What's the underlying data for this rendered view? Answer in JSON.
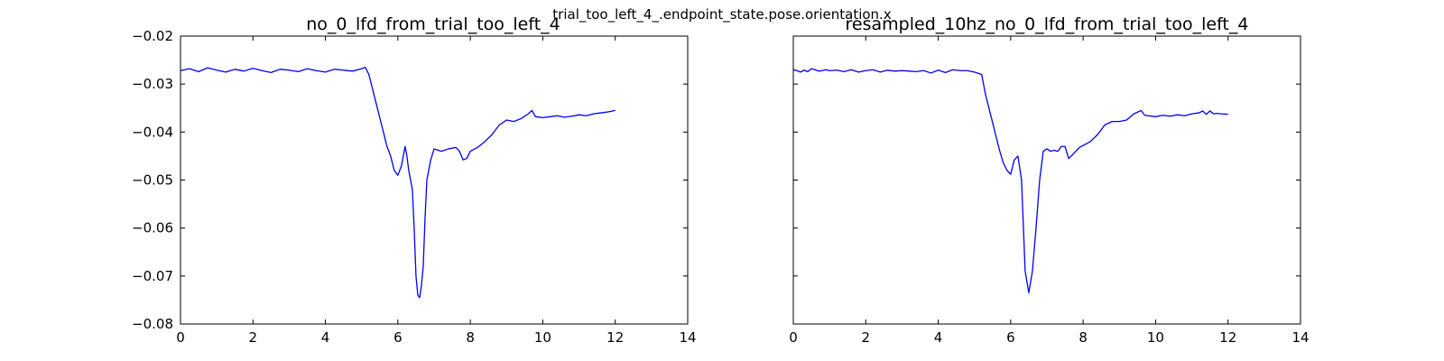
{
  "figure": {
    "suptitle": "trial_too_left_4_.endpoint_state.pose.orientation.x"
  },
  "chart_data": [
    {
      "type": "line",
      "title": "no_0_lfd_from_trial_too_left_4",
      "xlabel": "",
      "ylabel": "",
      "xlim": [
        0,
        14
      ],
      "ylim": [
        -0.08,
        -0.02
      ],
      "xticks": [
        0,
        2,
        4,
        6,
        8,
        10,
        12,
        14
      ],
      "yticks": [
        -0.08,
        -0.07,
        -0.06,
        -0.05,
        -0.04,
        -0.03,
        -0.02
      ],
      "xtick_labels": [
        "0",
        "2",
        "4",
        "6",
        "8",
        "10",
        "12",
        "14"
      ],
      "ytick_labels": [
        "−0.08",
        "−0.07",
        "−0.06",
        "−0.05",
        "−0.04",
        "−0.03",
        "−0.02"
      ],
      "show_yticklabels": true,
      "grid": false,
      "series": [
        {
          "color": "#0000ff",
          "x": [
            0,
            0.25,
            0.5,
            0.75,
            1.0,
            1.25,
            1.5,
            1.75,
            2.0,
            2.25,
            2.5,
            2.75,
            3.0,
            3.25,
            3.5,
            3.75,
            4.0,
            4.25,
            4.5,
            4.75,
            5.0,
            5.1,
            5.2,
            5.3,
            5.4,
            5.5,
            5.6,
            5.7,
            5.8,
            5.9,
            6.0,
            6.1,
            6.15,
            6.2,
            6.25,
            6.3,
            6.4,
            6.45,
            6.5,
            6.55,
            6.6,
            6.65,
            6.7,
            6.75,
            6.8,
            6.9,
            7.0,
            7.2,
            7.4,
            7.6,
            7.7,
            7.8,
            7.9,
            8.0,
            8.2,
            8.4,
            8.6,
            8.8,
            9.0,
            9.2,
            9.4,
            9.6,
            9.7,
            9.8,
            10.0,
            10.2,
            10.4,
            10.6,
            10.8,
            11.0,
            11.2,
            11.4,
            11.6,
            11.8,
            12.0
          ],
          "y": [
            -0.0272,
            -0.0268,
            -0.0274,
            -0.0266,
            -0.0271,
            -0.0275,
            -0.0269,
            -0.0273,
            -0.0267,
            -0.0272,
            -0.0276,
            -0.0269,
            -0.0271,
            -0.0274,
            -0.0268,
            -0.0272,
            -0.0275,
            -0.0269,
            -0.0271,
            -0.0273,
            -0.0268,
            -0.0265,
            -0.028,
            -0.031,
            -0.034,
            -0.037,
            -0.04,
            -0.043,
            -0.045,
            -0.048,
            -0.049,
            -0.047,
            -0.045,
            -0.043,
            -0.045,
            -0.048,
            -0.052,
            -0.06,
            -0.07,
            -0.074,
            -0.0745,
            -0.072,
            -0.068,
            -0.058,
            -0.05,
            -0.046,
            -0.0435,
            -0.044,
            -0.0435,
            -0.0432,
            -0.044,
            -0.0458,
            -0.0455,
            -0.044,
            -0.0432,
            -0.042,
            -0.0405,
            -0.0385,
            -0.0375,
            -0.0378,
            -0.0372,
            -0.0362,
            -0.0355,
            -0.0368,
            -0.037,
            -0.0368,
            -0.0366,
            -0.0369,
            -0.0367,
            -0.0364,
            -0.0366,
            -0.0362,
            -0.036,
            -0.0358,
            -0.0355
          ]
        }
      ]
    },
    {
      "type": "line",
      "title": "resampled_10hz_no_0_lfd_from_trial_too_left_4",
      "xlabel": "",
      "ylabel": "",
      "xlim": [
        0,
        14
      ],
      "ylim": [
        -0.08,
        -0.02
      ],
      "xticks": [
        0,
        2,
        4,
        6,
        8,
        10,
        12,
        14
      ],
      "yticks": [
        -0.08,
        -0.07,
        -0.06,
        -0.05,
        -0.04,
        -0.03,
        -0.02
      ],
      "xtick_labels": [
        "0",
        "2",
        "4",
        "6",
        "8",
        "10",
        "12",
        "14"
      ],
      "ytick_labels": [],
      "show_yticklabels": false,
      "grid": false,
      "series": [
        {
          "color": "#0000ff",
          "x": [
            0,
            0.1,
            0.2,
            0.3,
            0.4,
            0.5,
            0.6,
            0.7,
            0.8,
            0.9,
            1.0,
            1.2,
            1.4,
            1.6,
            1.8,
            2.0,
            2.2,
            2.4,
            2.6,
            2.8,
            3.0,
            3.2,
            3.4,
            3.6,
            3.8,
            4.0,
            4.2,
            4.4,
            4.6,
            4.8,
            5.0,
            5.2,
            5.3,
            5.4,
            5.5,
            5.6,
            5.7,
            5.8,
            5.9,
            6.0,
            6.1,
            6.2,
            6.3,
            6.4,
            6.5,
            6.6,
            6.7,
            6.8,
            6.9,
            7.0,
            7.1,
            7.2,
            7.3,
            7.4,
            7.5,
            7.6,
            7.7,
            7.8,
            7.9,
            8.0,
            8.2,
            8.4,
            8.6,
            8.8,
            9.0,
            9.2,
            9.4,
            9.6,
            9.7,
            9.8,
            10.0,
            10.2,
            10.4,
            10.6,
            10.8,
            11.0,
            11.2,
            11.3,
            11.4,
            11.5,
            11.6,
            11.7,
            11.8,
            12.0
          ],
          "y": [
            -0.027,
            -0.0272,
            -0.0275,
            -0.0271,
            -0.0274,
            -0.0268,
            -0.027,
            -0.0273,
            -0.0272,
            -0.027,
            -0.0272,
            -0.0271,
            -0.0274,
            -0.027,
            -0.0275,
            -0.0272,
            -0.027,
            -0.0275,
            -0.0271,
            -0.0273,
            -0.0272,
            -0.0273,
            -0.0274,
            -0.0272,
            -0.0277,
            -0.0271,
            -0.0276,
            -0.027,
            -0.0272,
            -0.0272,
            -0.0275,
            -0.028,
            -0.032,
            -0.035,
            -0.038,
            -0.041,
            -0.044,
            -0.0465,
            -0.048,
            -0.0488,
            -0.0458,
            -0.045,
            -0.05,
            -0.069,
            -0.0735,
            -0.069,
            -0.06,
            -0.05,
            -0.044,
            -0.0435,
            -0.044,
            -0.0438,
            -0.044,
            -0.043,
            -0.043,
            -0.0455,
            -0.0448,
            -0.044,
            -0.0432,
            -0.0428,
            -0.042,
            -0.0405,
            -0.0385,
            -0.0378,
            -0.0378,
            -0.0375,
            -0.0362,
            -0.0355,
            -0.0365,
            -0.0366,
            -0.0368,
            -0.0365,
            -0.0367,
            -0.0364,
            -0.0366,
            -0.0362,
            -0.036,
            -0.0356,
            -0.0363,
            -0.0356,
            -0.0362,
            -0.0361,
            -0.0362,
            -0.0363
          ]
        }
      ]
    }
  ]
}
